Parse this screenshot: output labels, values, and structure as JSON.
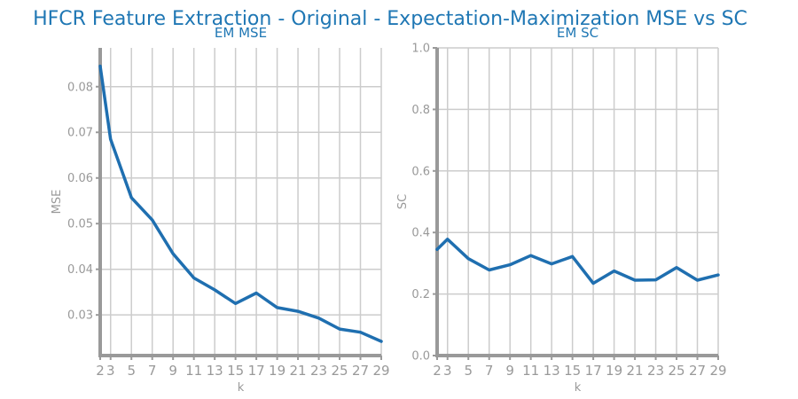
{
  "figure": {
    "title": "HFCR Feature Extraction - Original - Expectation-Maximization MSE vs SC"
  },
  "chart_data": [
    {
      "type": "line",
      "title": "EM MSE",
      "xlabel": "k",
      "ylabel": "MSE",
      "x": [
        2,
        3,
        5,
        7,
        9,
        11,
        13,
        15,
        17,
        19,
        21,
        23,
        25,
        27,
        29
      ],
      "x_ticks": [
        "2",
        "3",
        "5",
        "7",
        "9",
        "11",
        "13",
        "15",
        "17",
        "19",
        "21",
        "23",
        "25",
        "27",
        "29"
      ],
      "series": [
        {
          "values": [
            0.0845,
            0.0685,
            0.0557,
            0.0508,
            0.0434,
            0.0381,
            0.0355,
            0.0325,
            0.0348,
            0.0316,
            0.0308,
            0.0293,
            0.0269,
            0.0262,
            0.0242
          ]
        }
      ],
      "y_ticks": [
        "0.03",
        "0.04",
        "0.05",
        "0.06",
        "0.07",
        "0.08"
      ],
      "xlim": [
        2,
        29
      ],
      "ylim": [
        0.0211,
        0.0885
      ],
      "grid": true,
      "color": "#1f6fb0"
    },
    {
      "type": "line",
      "title": "EM SC",
      "xlabel": "k",
      "ylabel": "SC",
      "x": [
        2,
        3,
        5,
        7,
        9,
        11,
        13,
        15,
        17,
        19,
        21,
        23,
        25,
        27,
        29
      ],
      "x_ticks": [
        "2",
        "3",
        "5",
        "7",
        "9",
        "11",
        "13",
        "15",
        "17",
        "19",
        "21",
        "23",
        "25",
        "27",
        "29"
      ],
      "series": [
        {
          "values": [
            0.345,
            0.378,
            0.315,
            0.278,
            0.295,
            0.325,
            0.298,
            0.322,
            0.235,
            0.275,
            0.245,
            0.246,
            0.286,
            0.245,
            0.262
          ]
        }
      ],
      "y_ticks": [
        "0.0",
        "0.2",
        "0.4",
        "0.6",
        "0.8",
        "1.0"
      ],
      "xlim": [
        2,
        29
      ],
      "ylim": [
        0,
        1
      ],
      "grid": true,
      "color": "#1f6fb0"
    }
  ]
}
